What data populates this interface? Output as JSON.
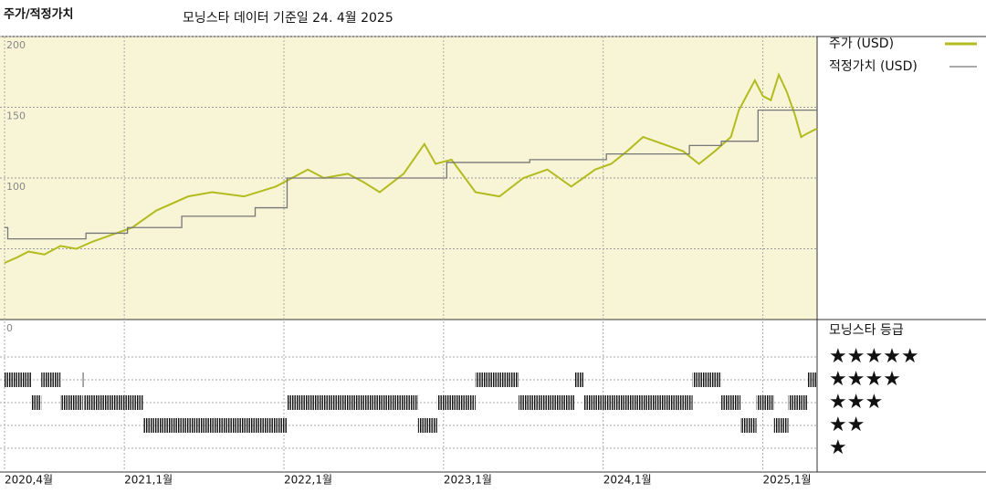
{
  "chart_data": [
    {
      "type": "line",
      "title": "주가/적정가치",
      "subtitle": "모닝스타 데이터 기준일 24. 4월 2025",
      "xlim": [
        2020.25,
        2025.34
      ],
      "xticks": [
        {
          "value": 2020.25,
          "label": "2020,4월"
        },
        {
          "value": 2021.0,
          "label": "2021,1월"
        },
        {
          "value": 2022.0,
          "label": "2022,1월"
        },
        {
          "value": 2023.0,
          "label": "2023,1월"
        },
        {
          "value": 2024.0,
          "label": "2024,1월"
        },
        {
          "value": 2025.0,
          "label": "2025,1월"
        }
      ],
      "ylim": [
        0,
        200
      ],
      "yticks": [
        0,
        100,
        150,
        200
      ],
      "grid_y": [
        50,
        100,
        150,
        200
      ],
      "series": [
        {
          "name": "주가 (USD)",
          "color": "#b3bb1f",
          "step": false,
          "x": [
            2020.25,
            2020.33,
            2020.4,
            2020.5,
            2020.6,
            2020.7,
            2020.8,
            2020.95,
            2021.05,
            2021.2,
            2021.4,
            2021.55,
            2021.75,
            2021.95,
            2022.05,
            2022.15,
            2022.25,
            2022.4,
            2022.5,
            2022.6,
            2022.75,
            2022.88,
            2022.95,
            2023.05,
            2023.2,
            2023.35,
            2023.5,
            2023.65,
            2023.8,
            2023.95,
            2024.05,
            2024.15,
            2024.25,
            2024.4,
            2024.5,
            2024.6,
            2024.7,
            2024.8,
            2024.85,
            2024.95,
            2025.0,
            2025.05,
            2025.1,
            2025.15,
            2025.2,
            2025.24,
            2025.27,
            2025.34
          ],
          "values": [
            40,
            44,
            48,
            46,
            52,
            50,
            55,
            61,
            65,
            77,
            87,
            90,
            87,
            94,
            100,
            106,
            100,
            103,
            97,
            90,
            103,
            124,
            110,
            113,
            90,
            87,
            100,
            106,
            94,
            106,
            110,
            119,
            129,
            123,
            119,
            110,
            119,
            129,
            148,
            169,
            158,
            155,
            173,
            161,
            145,
            129,
            131,
            135
          ]
        },
        {
          "name": "적정가치 (USD)",
          "color": "#777777",
          "step": true,
          "x": [
            2020.25,
            2020.27,
            2020.76,
            2021.02,
            2021.36,
            2021.82,
            2022.02,
            2023.02,
            2023.54,
            2024.02,
            2024.54,
            2024.74,
            2024.97,
            2025.34
          ],
          "values": [
            65,
            57,
            61,
            65,
            73,
            79,
            100,
            111,
            113,
            117,
            123,
            126,
            148,
            148
          ]
        }
      ]
    },
    {
      "type": "rating",
      "title": "모닝스타 등급",
      "levels": [
        5,
        4,
        3,
        2,
        1
      ],
      "level_labels": [
        "★★★★★",
        "★★★★",
        "★★★",
        "★★",
        "★"
      ],
      "x": [
        2020.25,
        2020.42,
        2020.48,
        2020.6,
        2020.74,
        2020.75,
        2021.12,
        2022.02,
        2022.84,
        2022.96,
        2023.2,
        2023.47,
        2023.82,
        2023.88,
        2024.56,
        2024.74,
        2024.86,
        2024.96,
        2025.07,
        2025.16,
        2025.28
      ],
      "values": [
        4,
        3,
        4,
        3,
        4,
        3,
        2,
        3,
        2,
        3,
        4,
        3,
        4,
        3,
        4,
        3,
        2,
        3,
        2,
        3,
        4
      ]
    }
  ]
}
